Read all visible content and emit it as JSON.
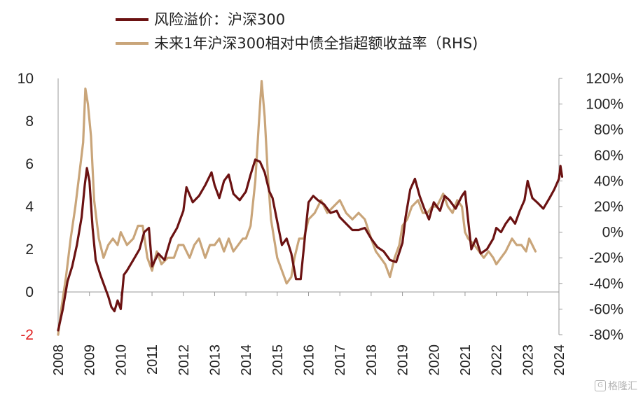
{
  "chart_data": {
    "type": "line",
    "legend": {
      "placement": "top",
      "entries": [
        {
          "label": "风险溢价：沪深300",
          "color": "#6b1212"
        },
        {
          "label": "未来1年沪深300相对中债全指超额收益率（RHS)",
          "color": "#c9a57a"
        }
      ]
    },
    "x_ticks": [
      "2008",
      "2009",
      "2010",
      "2011",
      "2012",
      "2013",
      "2014",
      "2015",
      "2016",
      "2017",
      "2018",
      "2019",
      "2020",
      "2021",
      "2022",
      "2023",
      "2024"
    ],
    "x_range": [
      2008.0,
      2024.0
    ],
    "y_left": {
      "ticks": [
        "10",
        "8",
        "6",
        "4",
        "2",
        "0",
        "-2"
      ],
      "highlighted_tick": "-2",
      "highlight_color": "#e02020",
      "range": [
        -2,
        10
      ]
    },
    "y_right": {
      "ticks": [
        "120%",
        "100%",
        "80%",
        "60%",
        "40%",
        "20%",
        "0%",
        "-20%",
        "-40%",
        "-60%",
        "-80%"
      ],
      "range": [
        -80,
        120
      ],
      "unit": "%"
    },
    "grid": false,
    "series": [
      {
        "name": "风险溢价：沪深300",
        "axis": "left",
        "color": "#6b1212",
        "x": [
          2008.0,
          2008.15,
          2008.3,
          2008.45,
          2008.6,
          2008.75,
          2008.85,
          2008.92,
          2009.0,
          2009.1,
          2009.2,
          2009.35,
          2009.5,
          2009.6,
          2009.7,
          2009.8,
          2009.9,
          2010.0,
          2010.1,
          2010.2,
          2010.4,
          2010.6,
          2010.75,
          2010.9,
          2011.0,
          2011.2,
          2011.4,
          2011.6,
          2011.8,
          2012.0,
          2012.1,
          2012.3,
          2012.5,
          2012.7,
          2012.9,
          2013.0,
          2013.15,
          2013.3,
          2013.45,
          2013.6,
          2013.8,
          2014.0,
          2014.15,
          2014.3,
          2014.45,
          2014.6,
          2014.75,
          2014.85,
          2015.0,
          2015.15,
          2015.3,
          2015.45,
          2015.6,
          2015.75,
          2015.9,
          2016.0,
          2016.15,
          2016.3,
          2016.5,
          2016.7,
          2016.9,
          2017.0,
          2017.2,
          2017.4,
          2017.6,
          2017.8,
          2018.0,
          2018.2,
          2018.4,
          2018.6,
          2018.8,
          2019.0,
          2019.1,
          2019.25,
          2019.4,
          2019.55,
          2019.7,
          2019.85,
          2020.0,
          2020.2,
          2020.35,
          2020.5,
          2020.7,
          2020.9,
          2021.0,
          2021.2,
          2021.35,
          2021.5,
          2021.7,
          2021.9,
          2022.0,
          2022.15,
          2022.3,
          2022.45,
          2022.6,
          2022.75,
          2022.9,
          2023.0,
          2023.15,
          2023.3,
          2023.5,
          2023.7,
          2023.85,
          2024.0,
          2024.05,
          2024.1
        ],
        "y": [
          -1.8,
          -0.8,
          0.5,
          1.2,
          2.2,
          3.5,
          5.0,
          5.8,
          5.2,
          3.0,
          1.5,
          0.8,
          0.2,
          -0.2,
          -0.7,
          -0.9,
          -0.4,
          -0.8,
          0.8,
          1.0,
          1.5,
          2.0,
          2.8,
          3.0,
          1.2,
          1.8,
          1.5,
          2.5,
          3.0,
          3.8,
          4.9,
          4.2,
          4.5,
          5.0,
          5.6,
          5.0,
          4.4,
          5.2,
          5.5,
          4.6,
          4.3,
          4.7,
          5.5,
          6.2,
          6.1,
          5.6,
          4.7,
          4.4,
          3.3,
          2.2,
          2.5,
          1.8,
          0.6,
          0.6,
          2.8,
          4.2,
          4.5,
          4.3,
          4.1,
          3.7,
          3.8,
          3.5,
          3.2,
          2.9,
          2.9,
          3.0,
          2.5,
          2.1,
          1.9,
          1.5,
          1.4,
          2.3,
          3.5,
          4.8,
          5.3,
          4.5,
          3.9,
          3.4,
          4.2,
          3.8,
          4.5,
          4.3,
          3.9,
          4.5,
          4.7,
          2.0,
          2.5,
          1.8,
          2.0,
          2.5,
          3.0,
          2.8,
          3.2,
          3.5,
          3.2,
          3.8,
          4.3,
          5.2,
          4.4,
          4.2,
          3.9,
          4.4,
          4.8,
          5.3,
          5.9,
          5.4
        ]
      },
      {
        "name": "未来1年沪深300相对中债全指超额收益率（RHS)",
        "axis": "right",
        "color": "#c9a57a",
        "x": [
          2008.0,
          2008.1,
          2008.25,
          2008.4,
          2008.55,
          2008.7,
          2008.8,
          2008.87,
          2008.95,
          2009.05,
          2009.15,
          2009.3,
          2009.45,
          2009.6,
          2009.75,
          2009.9,
          2010.0,
          2010.2,
          2010.4,
          2010.55,
          2010.7,
          2010.85,
          2011.0,
          2011.15,
          2011.3,
          2011.5,
          2011.7,
          2011.85,
          2012.0,
          2012.2,
          2012.35,
          2012.5,
          2012.7,
          2012.85,
          2013.0,
          2013.15,
          2013.3,
          2013.45,
          2013.6,
          2013.75,
          2013.9,
          2014.0,
          2014.15,
          2014.3,
          2014.4,
          2014.5,
          2014.6,
          2014.7,
          2014.8,
          2014.9,
          2015.0,
          2015.15,
          2015.3,
          2015.45,
          2015.55,
          2015.7,
          2015.85,
          2016.0,
          2016.2,
          2016.4,
          2016.6,
          2016.8,
          2017.0,
          2017.2,
          2017.4,
          2017.6,
          2017.8,
          2018.0,
          2018.15,
          2018.3,
          2018.45,
          2018.6,
          2018.75,
          2018.9,
          2019.0,
          2019.15,
          2019.3,
          2019.5,
          2019.65,
          2019.8,
          2019.95,
          2020.1,
          2020.3,
          2020.45,
          2020.6,
          2020.75,
          2020.9,
          2021.0,
          2021.1,
          2021.3,
          2021.45,
          2021.6,
          2021.75,
          2021.9,
          2022.0,
          2022.15,
          2022.3,
          2022.5,
          2022.65,
          2022.8,
          2022.95,
          2023.05,
          2023.15,
          2023.25
        ],
        "y": [
          -80,
          -60,
          -35,
          -5,
          20,
          50,
          70,
          112,
          100,
          75,
          25,
          -5,
          -20,
          -10,
          -5,
          -10,
          0,
          -10,
          -5,
          5,
          5,
          -20,
          -30,
          -15,
          -25,
          -20,
          -20,
          -10,
          -10,
          -20,
          -10,
          -5,
          -20,
          -10,
          -10,
          -5,
          -15,
          -5,
          -15,
          -10,
          -5,
          -5,
          5,
          40,
          80,
          118,
          90,
          45,
          10,
          -5,
          -20,
          -30,
          -40,
          -35,
          -20,
          -5,
          -5,
          10,
          15,
          25,
          15,
          20,
          25,
          15,
          10,
          15,
          10,
          -5,
          -15,
          -20,
          -25,
          -35,
          -20,
          -10,
          5,
          10,
          20,
          25,
          15,
          15,
          20,
          20,
          30,
          20,
          15,
          25,
          20,
          0,
          -5,
          -10,
          -15,
          -20,
          -15,
          -20,
          -25,
          -20,
          -15,
          -5,
          -10,
          -10,
          -15,
          -5,
          -10,
          -15
        ]
      }
    ]
  },
  "watermark": {
    "text": "格隆汇"
  }
}
